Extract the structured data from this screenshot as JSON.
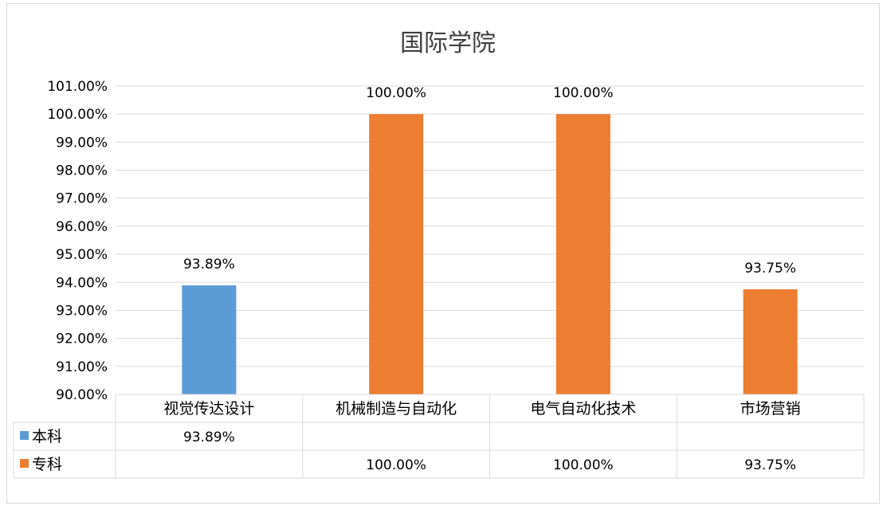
{
  "chart_data": {
    "type": "bar",
    "title": "国际学院",
    "categories": [
      "视觉传达设计",
      "机械制造与自动化",
      "电气自动化技术",
      "市场营销"
    ],
    "ylim": [
      0.9,
      1.01
    ],
    "ytick_step": 0.01,
    "ytick_labels": [
      "90.00%",
      "91.00%",
      "92.00%",
      "93.00%",
      "94.00%",
      "95.00%",
      "96.00%",
      "97.00%",
      "98.00%",
      "99.00%",
      "100.00%",
      "101.00%"
    ],
    "grid": true,
    "legend_position": "data-table",
    "series": [
      {
        "name": "本科",
        "color": "#5b9bd5",
        "values": [
          0.9389,
          null,
          null,
          null
        ],
        "labels": [
          "93.89%",
          "",
          "",
          ""
        ]
      },
      {
        "name": "专科",
        "color": "#ed7d31",
        "values": [
          null,
          1.0,
          1.0,
          0.9375
        ],
        "labels": [
          "",
          "100.00%",
          "100.00%",
          "93.75%"
        ]
      }
    ]
  }
}
